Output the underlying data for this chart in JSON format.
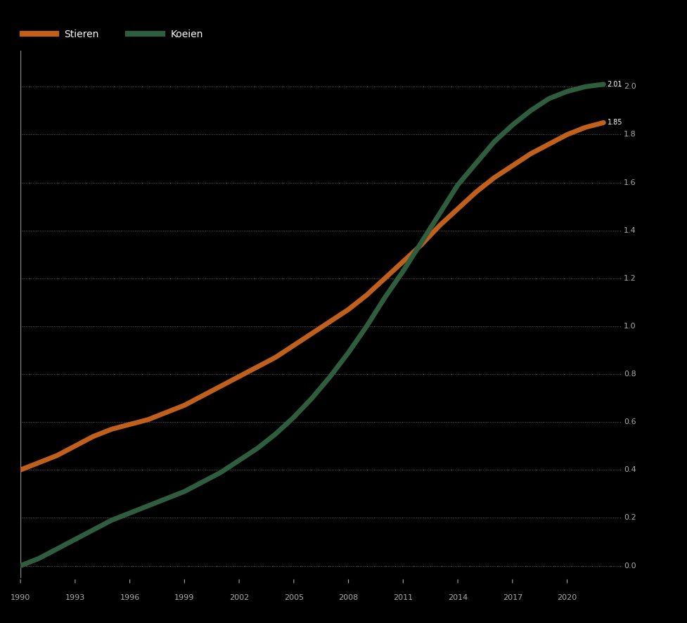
{
  "legend_labels": [
    "Stieren",
    "Koeien"
  ],
  "legend_colors": [
    "#C1601A",
    "#2E5E3E"
  ],
  "background_color": "#000000",
  "plot_bg_color": "#000000",
  "grid_color": "#888888",
  "line_color_orange": "#C1601A",
  "line_color_green": "#2E5E3E",
  "line_width": 5,
  "x_ticks": [
    1990,
    1993,
    1996,
    1999,
    2002,
    2005,
    2008,
    2011,
    2014,
    2017,
    2020
  ],
  "y_ticks": [
    0.0,
    0.2,
    0.4,
    0.6,
    0.8,
    1.0,
    1.2,
    1.4,
    1.6,
    1.8,
    2.0
  ],
  "ylim": [
    -0.05,
    2.15
  ],
  "xlim": [
    1990,
    2023
  ],
  "orange_x": [
    1990,
    1991,
    1992,
    1993,
    1994,
    1995,
    1996,
    1997,
    1998,
    1999,
    2000,
    2001,
    2002,
    2003,
    2004,
    2005,
    2006,
    2007,
    2008,
    2009,
    2010,
    2011,
    2012,
    2013,
    2014,
    2015,
    2016,
    2017,
    2018,
    2019,
    2020,
    2021,
    2022
  ],
  "orange_y": [
    0.4,
    0.43,
    0.46,
    0.5,
    0.54,
    0.57,
    0.59,
    0.61,
    0.64,
    0.67,
    0.71,
    0.75,
    0.79,
    0.83,
    0.87,
    0.92,
    0.97,
    1.02,
    1.07,
    1.13,
    1.2,
    1.27,
    1.34,
    1.42,
    1.49,
    1.56,
    1.62,
    1.67,
    1.72,
    1.76,
    1.8,
    1.83,
    1.85
  ],
  "green_x": [
    1990,
    1991,
    1992,
    1993,
    1994,
    1995,
    1996,
    1997,
    1998,
    1999,
    2000,
    2001,
    2002,
    2003,
    2004,
    2005,
    2006,
    2007,
    2008,
    2009,
    2010,
    2011,
    2012,
    2013,
    2014,
    2015,
    2016,
    2017,
    2018,
    2019,
    2020,
    2021,
    2022
  ],
  "green_y": [
    0.0,
    0.03,
    0.07,
    0.11,
    0.15,
    0.19,
    0.22,
    0.25,
    0.28,
    0.31,
    0.35,
    0.39,
    0.44,
    0.49,
    0.55,
    0.62,
    0.7,
    0.79,
    0.89,
    1.0,
    1.12,
    1.23,
    1.35,
    1.47,
    1.59,
    1.68,
    1.77,
    1.84,
    1.9,
    1.95,
    1.98,
    2.0,
    2.01
  ],
  "tick_color": "#aaaaaa",
  "tick_fontsize": 8,
  "axis_line_color": "#888888",
  "end_label_orange": "1.85",
  "right_y_labels": [
    "0.0",
    "0.2",
    "0.4",
    "0.6",
    "0.8",
    "1.0",
    "1.2",
    "1.4",
    "1.6",
    "1.8",
    "2.0"
  ]
}
